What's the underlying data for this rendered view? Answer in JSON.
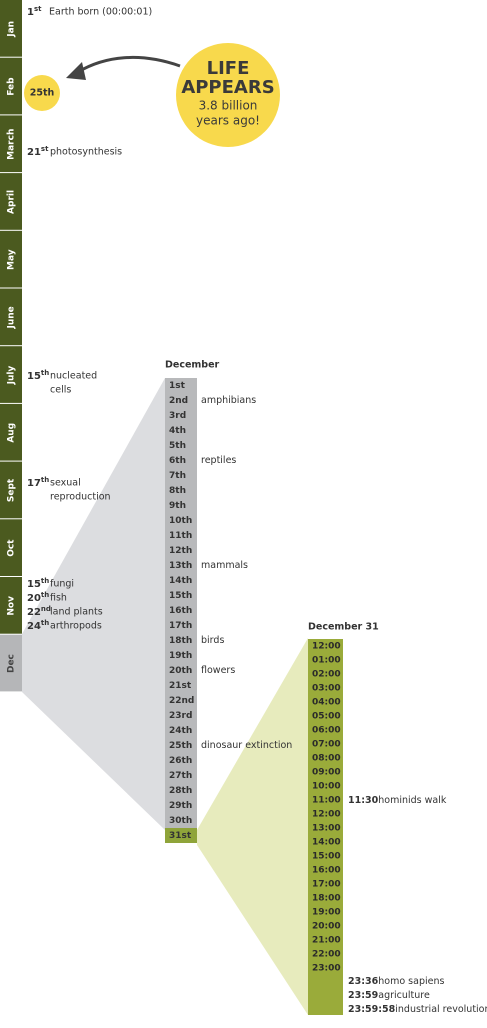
{
  "months": [
    "Jan",
    "Feb",
    "March",
    "April",
    "May",
    "June",
    "July",
    "Aug",
    "Sept",
    "Oct",
    "Nov",
    "Dec"
  ],
  "year_events": [
    {
      "num": "1",
      "suffix": "st",
      "lines": [
        "Earth born (00:00:01)"
      ],
      "y": 0
    },
    {
      "num": "21",
      "suffix": "st",
      "lines": [
        "photosynthesis"
      ]
    },
    {
      "num": "15",
      "suffix": "th",
      "lines": [
        "nucleated",
        "cells"
      ]
    },
    {
      "num": "17",
      "suffix": "th",
      "lines": [
        "sexual",
        "reproduction"
      ]
    },
    {
      "num": "15",
      "suffix": "th",
      "lines": [
        "fungi"
      ]
    },
    {
      "num": "20",
      "suffix": "th",
      "lines": [
        "fish"
      ]
    },
    {
      "num": "22",
      "suffix": "nd",
      "lines": [
        "land plants"
      ]
    },
    {
      "num": "24",
      "suffix": "th",
      "lines": [
        "arthropods"
      ]
    }
  ],
  "feb_marker": "25th",
  "callout": {
    "title": [
      "LIFE",
      "APPEARS"
    ],
    "body": [
      "3.8 billion",
      "years ago!"
    ]
  },
  "december": {
    "title": "December",
    "days": [
      "1st",
      "2nd",
      "3rd",
      "4th",
      "5th",
      "6th",
      "7th",
      "8th",
      "9th",
      "10th",
      "11th",
      "12th",
      "13th",
      "14th",
      "15th",
      "16th",
      "17th",
      "18th",
      "19th",
      "20th",
      "21st",
      "22nd",
      "23rd",
      "24th",
      "25th",
      "26th",
      "27th",
      "28th",
      "29th",
      "30th",
      "31st"
    ],
    "events": [
      {
        "day": "2nd",
        "text": "amphibians"
      },
      {
        "day": "6th",
        "text": "reptiles"
      },
      {
        "day": "13th",
        "text": "mammals"
      },
      {
        "day": "18th",
        "text": "birds"
      },
      {
        "day": "20th",
        "text": "flowers"
      },
      {
        "day": "25th",
        "text": "dinosaur extinction"
      }
    ]
  },
  "december_31": {
    "title": "December 31",
    "hours": [
      "12:00",
      "01:00",
      "02:00",
      "03:00",
      "04:00",
      "05:00",
      "06:00",
      "07:00",
      "08:00",
      "09:00",
      "10:00",
      "11:00",
      "12:00",
      "13:00",
      "14:00",
      "15:00",
      "16:00",
      "17:00",
      "18:00",
      "19:00",
      "20:00",
      "21:00",
      "22:00",
      "23:00"
    ],
    "events": [
      {
        "time": "11:30",
        "text": "hominids walk"
      },
      {
        "time": "23:36",
        "text": "homo sapiens"
      },
      {
        "time": "23:59",
        "text": "agriculture"
      },
      {
        "time": "23:59:58",
        "text": "industrial revolution"
      }
    ]
  }
}
